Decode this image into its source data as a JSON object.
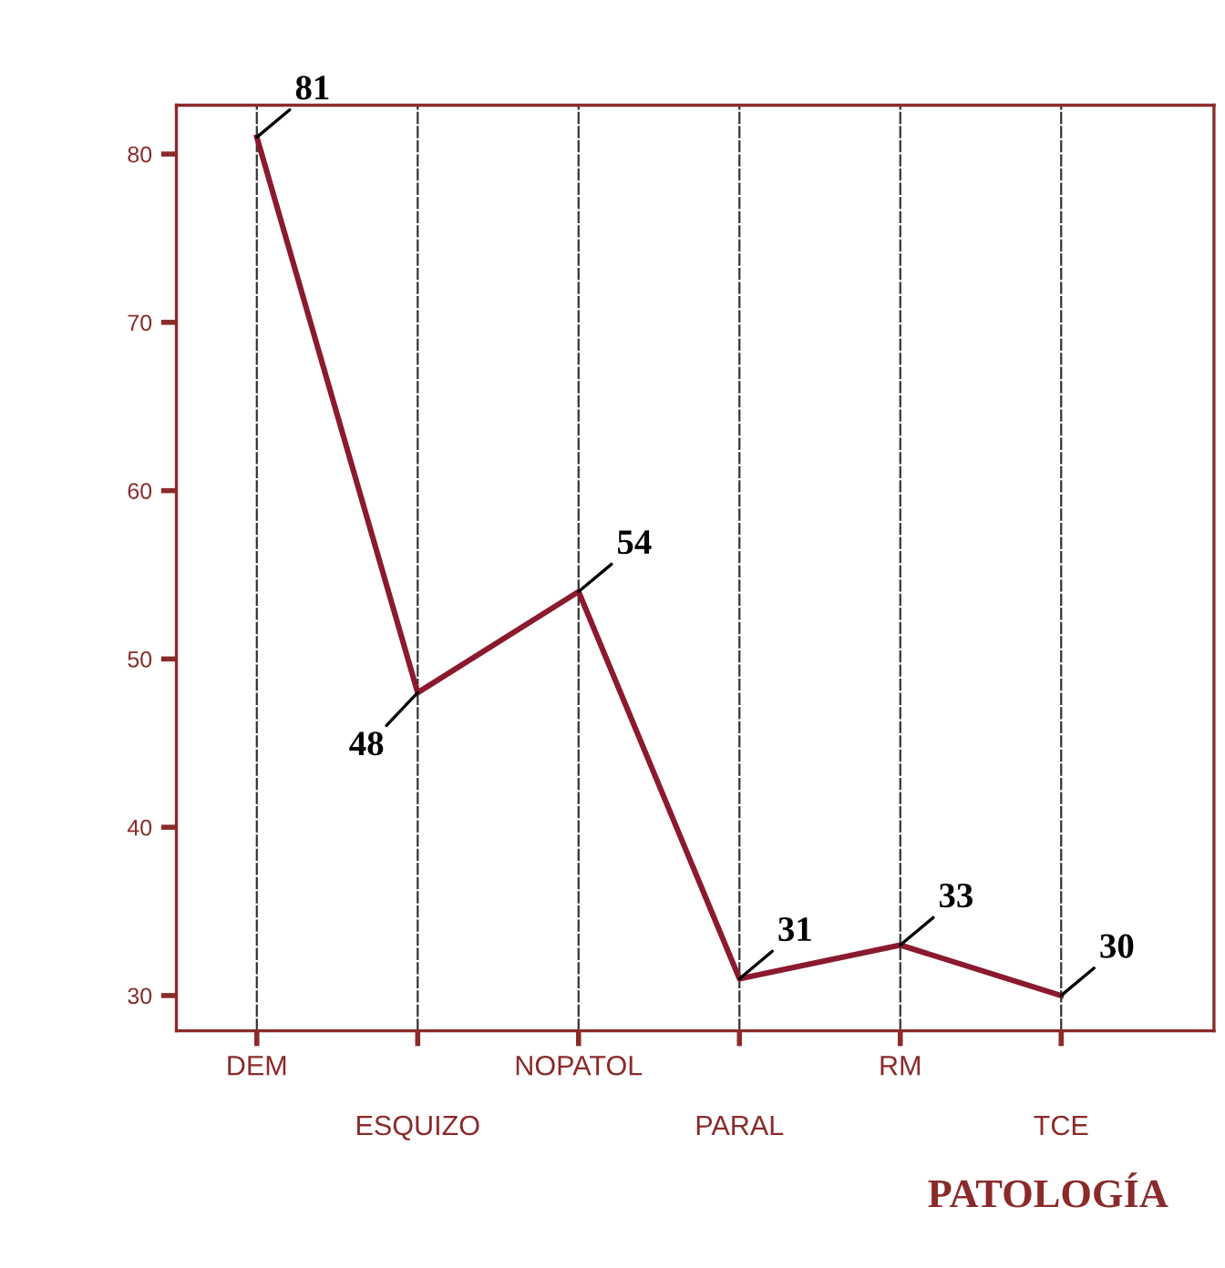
{
  "chart_data": {
    "type": "line",
    "xlabel": "PATOLOGÍA",
    "categories": [
      "DEM",
      "ESQUIZO",
      "NOPATOL",
      "PARAL",
      "RM",
      "TCE"
    ],
    "series": [
      {
        "color": "#8b1a2e",
        "values": [
          81,
          48,
          54,
          31,
          33,
          30
        ]
      }
    ],
    "ylim": [
      27.9,
      82.9
    ],
    "yticks": [
      30,
      40,
      50,
      60,
      70,
      80
    ],
    "grid": "x",
    "data_labels": true,
    "marker": "none",
    "line_style": "solid",
    "legend": false
  }
}
